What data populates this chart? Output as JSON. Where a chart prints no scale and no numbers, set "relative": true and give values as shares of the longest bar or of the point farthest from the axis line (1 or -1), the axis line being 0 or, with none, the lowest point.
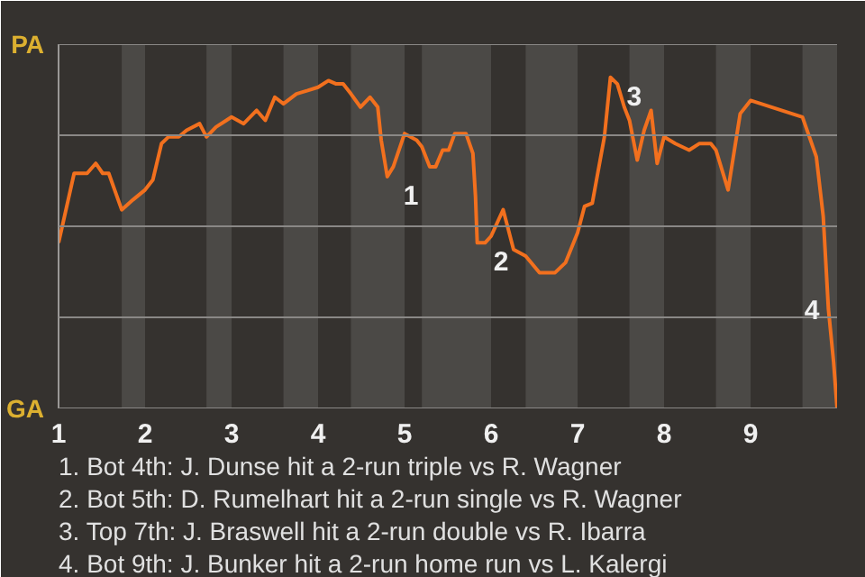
{
  "chart_data": {
    "type": "line",
    "relative": true,
    "x": [
      1,
      1.18,
      1.33,
      1.43,
      1.51,
      1.58,
      1.73,
      1.86,
      2,
      2.09,
      2.19,
      2.27,
      2.39,
      2.48,
      2.63,
      2.71,
      2.82,
      2.94,
      3,
      3.14,
      3.29,
      3.39,
      3.5,
      3.6,
      3.75,
      3.88,
      4,
      4.12,
      4.21,
      4.29,
      4.38,
      4.49,
      4.6,
      4.69,
      4.73,
      4.8,
      4.87,
      5,
      5.14,
      5.2,
      5.29,
      5.36,
      5.44,
      5.51,
      5.58,
      5.71,
      5.79,
      5.82,
      5.84,
      5.93,
      6,
      6.14,
      6.26,
      6.4,
      6.56,
      6.74,
      6.86,
      7,
      7.08,
      7.17,
      7.31,
      7.38,
      7.46,
      7.54,
      7.6,
      7.69,
      7.77,
      7.85,
      7.92,
      8,
      8.13,
      8.29,
      8.41,
      8.54,
      8.6,
      8.74,
      8.88,
      9,
      9.6,
      9.76,
      9.84,
      9.9,
      9.96,
      10
    ],
    "series": [
      {
        "color": "#f2701e",
        "values": [
          0.5,
          0.71,
          0.71,
          0.74,
          0.71,
          0.71,
          0.6,
          0.63,
          0.66,
          0.69,
          0.8,
          0.82,
          0.82,
          0.84,
          0.86,
          0.82,
          0.85,
          0.87,
          0.88,
          0.86,
          0.9,
          0.87,
          0.94,
          0.92,
          0.95,
          0.96,
          0.97,
          0.99,
          0.98,
          0.98,
          0.95,
          0.91,
          0.94,
          0.91,
          0.81,
          0.7,
          0.73,
          0.83,
          0.81,
          0.79,
          0.73,
          0.73,
          0.78,
          0.78,
          0.83,
          0.83,
          0.77,
          0.64,
          0.5,
          0.5,
          0.52,
          0.6,
          0.48,
          0.46,
          0.41,
          0.41,
          0.44,
          0.53,
          0.61,
          0.62,
          0.82,
          1,
          0.98,
          0.91,
          0.87,
          0.75,
          0.84,
          0.9,
          0.74,
          0.82,
          0.8,
          0.78,
          0.8,
          0.8,
          0.78,
          0.66,
          0.89,
          0.93,
          0.88,
          0.76,
          0.58,
          0.3,
          0.14,
          0
        ]
      }
    ],
    "xlim": [
      1,
      10
    ],
    "xticks": [
      1,
      2,
      3,
      4,
      5,
      6,
      7,
      8,
      9
    ],
    "line_style": "solid",
    "marker": "none",
    "ref_lines": [
      {
        "axis": "y",
        "value": 1.1,
        "label": "PA"
      },
      {
        "axis": "y",
        "value": 0.825
      },
      {
        "axis": "y",
        "value": 0.55
      },
      {
        "axis": "y",
        "value": 0.275
      },
      {
        "axis": "y",
        "value": 0,
        "label": "GA"
      }
    ],
    "bands": [
      {
        "axis": "x",
        "from": 1.73,
        "to": 2,
        "color": "#4b4946"
      },
      {
        "axis": "x",
        "from": 2.71,
        "to": 3,
        "color": "#4b4946"
      },
      {
        "axis": "x",
        "from": 3.6,
        "to": 4,
        "color": "#4b4946"
      },
      {
        "axis": "x",
        "from": 4.38,
        "to": 5,
        "color": "#4b4946"
      },
      {
        "axis": "x",
        "from": 5.2,
        "to": 6,
        "color": "#4b4946"
      },
      {
        "axis": "x",
        "from": 6.4,
        "to": 7,
        "color": "#4b4946"
      },
      {
        "axis": "x",
        "from": 7.6,
        "to": 8,
        "color": "#4b4946"
      },
      {
        "axis": "x",
        "from": 8.6,
        "to": 9,
        "color": "#4b4946"
      },
      {
        "axis": "x",
        "from": 9.6,
        "to": 10,
        "color": "#4b4946"
      }
    ],
    "annotations": [
      {
        "text": "1",
        "x": 4.8,
        "y": 0.7
      },
      {
        "text": "2",
        "x": 5.84,
        "y": 0.5
      },
      {
        "text": "3",
        "x": 7.38,
        "y": 1
      },
      {
        "text": "4",
        "x": 9.9,
        "y": 0.3
      },
      "1. Bot 4th: J. Dunse hit a 2-run triple vs R. Wagner",
      "2. Bot 5th: D. Rumelhart hit a 2-run single vs R. Wagner",
      "3. Top 7th: J. Braswell hit a 2-run double vs R. Ibarra",
      "4. Bot 9th: J. Bunker hit a 2-run home run vs L. Kalergi"
    ]
  }
}
